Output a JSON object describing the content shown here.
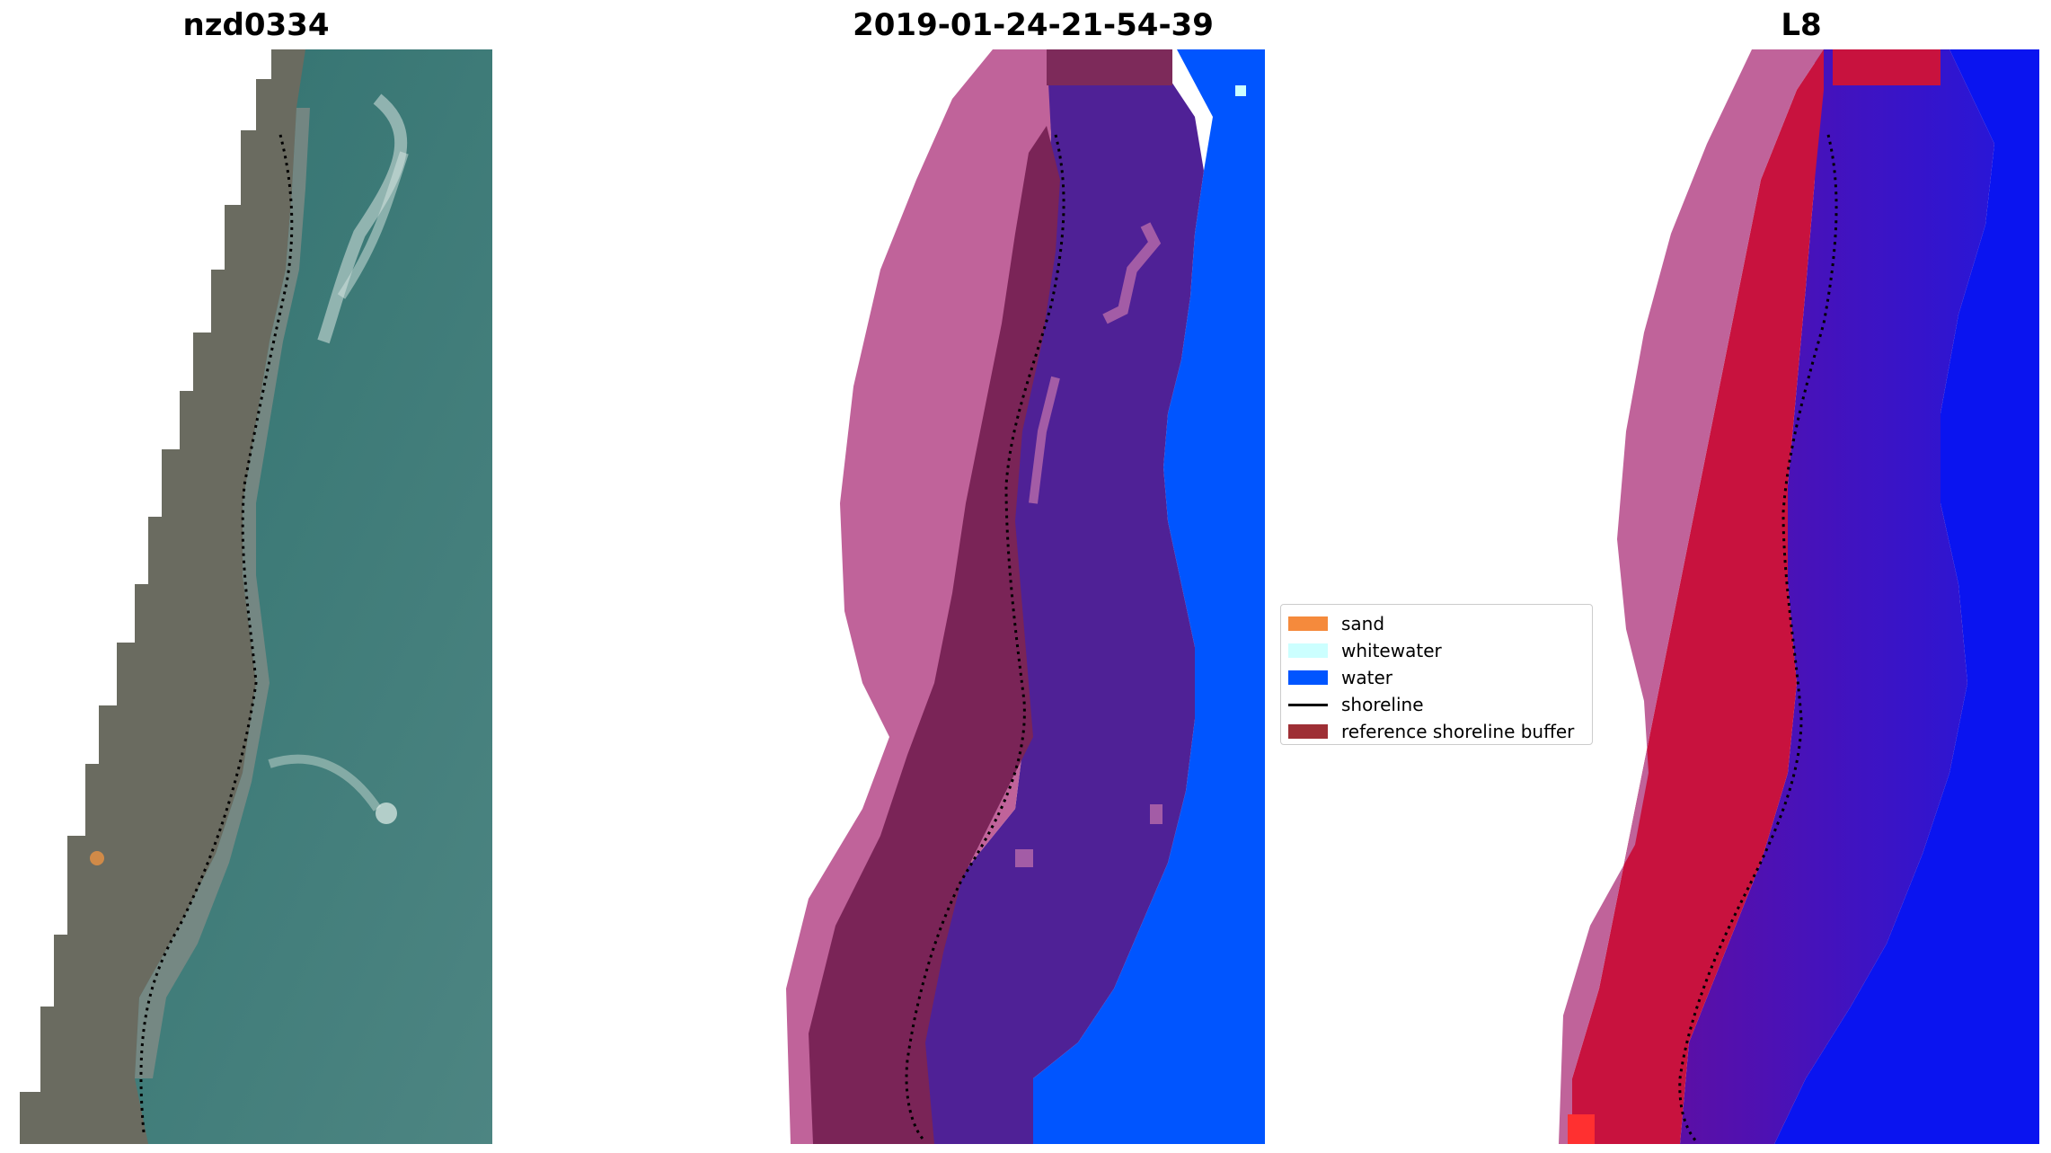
{
  "panels": {
    "left": {
      "title": "nzd0334"
    },
    "middle": {
      "title": "2019-01-24-21-54-39"
    },
    "right": {
      "title": "L8"
    }
  },
  "legend": {
    "items": [
      {
        "label": "sand",
        "color": "#f58a3c",
        "kind": "patch"
      },
      {
        "label": "whitewater",
        "color": "#ccffff",
        "kind": "patch"
      },
      {
        "label": "water",
        "color": "#0055ff",
        "kind": "patch"
      },
      {
        "label": "shoreline",
        "color": "#000000",
        "kind": "line"
      },
      {
        "label": "reference shoreline buffer",
        "color": "#9e2f35",
        "kind": "patch"
      }
    ]
  },
  "colors": {
    "sea_rgb": "#3f7a7a",
    "water_class": "#0055ff",
    "buffer_overlay": "#c0639a",
    "water_in_buffer": "#4f2196",
    "land_in_buffer": "#7a2457",
    "mndwi_land": "#c8123e",
    "mndwi_water": "#5a0fa8",
    "mndwi_sea": "#0a14f0"
  }
}
